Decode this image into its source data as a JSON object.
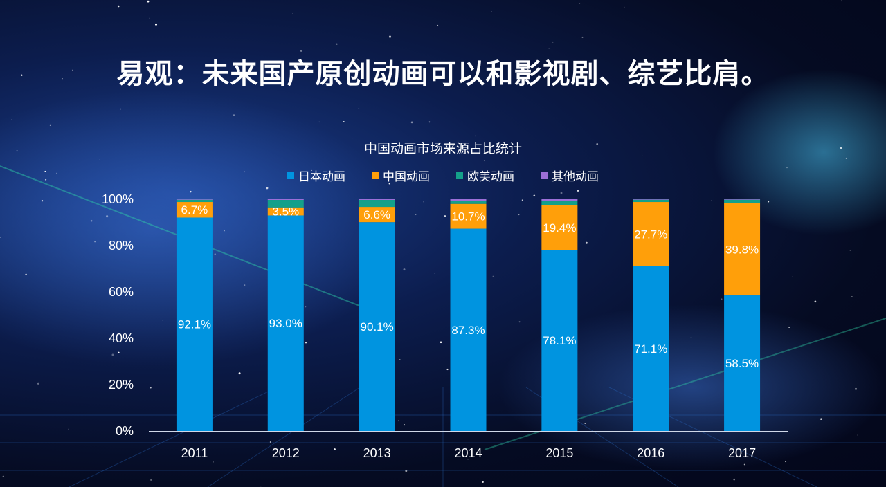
{
  "title": "易观：未来国产原创动画可以和影视剧、综艺比肩。",
  "colors": {
    "japan": "#0094e0",
    "china": "#ff9f0a",
    "western": "#14a08a",
    "other": "#9b6fd8"
  },
  "chart_data": {
    "type": "bar",
    "stacked": true,
    "title": "中国动画市场来源占比统计",
    "categories": [
      "2011",
      "2012",
      "2013",
      "2014",
      "2015",
      "2016",
      "2017"
    ],
    "series": [
      {
        "name": "日本动画",
        "values": [
          92.1,
          93.0,
          90.1,
          87.3,
          78.1,
          71.1,
          58.5
        ],
        "labels": [
          "92.1%",
          "93.0%",
          "90.1%",
          "87.3%",
          "78.1%",
          "71.1%",
          "58.5%"
        ]
      },
      {
        "name": "中国动画",
        "values": [
          6.7,
          3.5,
          6.6,
          10.7,
          19.4,
          27.7,
          39.8
        ],
        "labels": [
          "6.7%",
          "3.5%",
          "6.6%",
          "10.7%",
          "19.4%",
          "27.7%",
          "39.8%"
        ]
      },
      {
        "name": "欧美动画",
        "values": [
          1.0,
          3.2,
          3.0,
          1.2,
          1.6,
          1.0,
          1.5
        ]
      },
      {
        "name": "其他动画",
        "values": [
          0.2,
          0.3,
          0.3,
          0.8,
          0.9,
          0.2,
          0.2
        ]
      }
    ],
    "yticks": [
      "0%",
      "20%",
      "40%",
      "60%",
      "80%",
      "100%"
    ],
    "ylim": [
      0,
      100
    ],
    "xlabel": "",
    "ylabel": ""
  }
}
